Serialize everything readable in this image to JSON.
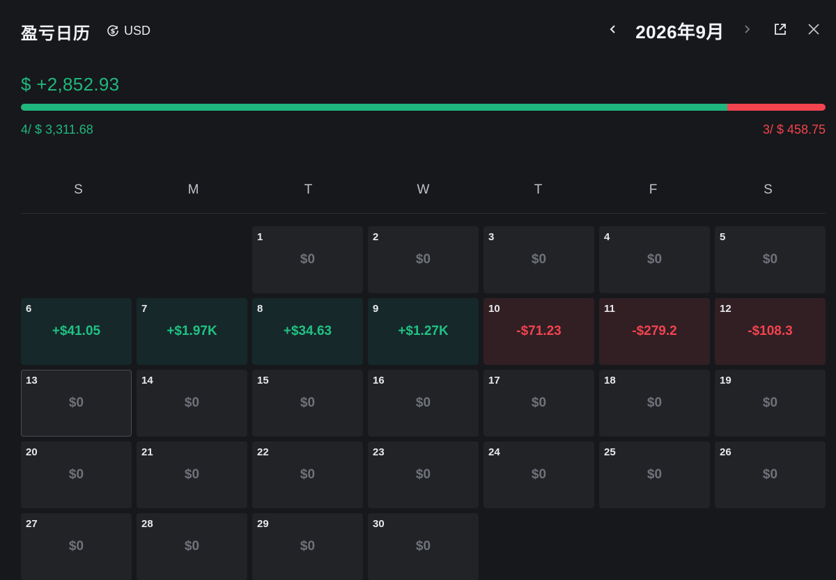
{
  "header": {
    "title": "盈亏日历",
    "currency": "USD",
    "month": "2026年9月",
    "icons": {
      "currency": "dollar-cycle-icon",
      "prev": "chevron-left-icon",
      "next": "chevron-right-icon",
      "external": "external-link-icon",
      "close": "close-icon"
    }
  },
  "summary": {
    "total": "$ +2,852.93",
    "win_label": "4/ $ 3,311.68",
    "loss_label": "3/ $ 458.75",
    "win_fraction": 0.878,
    "colors": {
      "win": "#1fb77e",
      "loss": "#f2434f"
    }
  },
  "weekdays": [
    "S",
    "M",
    "T",
    "W",
    "T",
    "F",
    "S"
  ],
  "days": [
    {
      "day": "",
      "pnl": "",
      "status": "empty"
    },
    {
      "day": "",
      "pnl": "",
      "status": "empty"
    },
    {
      "day": "1",
      "pnl": "$0",
      "status": "zero"
    },
    {
      "day": "2",
      "pnl": "$0",
      "status": "zero"
    },
    {
      "day": "3",
      "pnl": "$0",
      "status": "zero"
    },
    {
      "day": "4",
      "pnl": "$0",
      "status": "zero"
    },
    {
      "day": "5",
      "pnl": "$0",
      "status": "zero"
    },
    {
      "day": "6",
      "pnl": "+$41.05",
      "status": "pos"
    },
    {
      "day": "7",
      "pnl": "+$1.97K",
      "status": "pos"
    },
    {
      "day": "8",
      "pnl": "+$34.63",
      "status": "pos"
    },
    {
      "day": "9",
      "pnl": "+$1.27K",
      "status": "pos"
    },
    {
      "day": "10",
      "pnl": "-$71.23",
      "status": "neg"
    },
    {
      "day": "11",
      "pnl": "-$279.2",
      "status": "neg"
    },
    {
      "day": "12",
      "pnl": "-$108.3",
      "status": "neg"
    },
    {
      "day": "13",
      "pnl": "$0",
      "status": "zero",
      "selected": true
    },
    {
      "day": "14",
      "pnl": "$0",
      "status": "zero"
    },
    {
      "day": "15",
      "pnl": "$0",
      "status": "zero"
    },
    {
      "day": "16",
      "pnl": "$0",
      "status": "zero"
    },
    {
      "day": "17",
      "pnl": "$0",
      "status": "zero"
    },
    {
      "day": "18",
      "pnl": "$0",
      "status": "zero"
    },
    {
      "day": "19",
      "pnl": "$0",
      "status": "zero"
    },
    {
      "day": "20",
      "pnl": "$0",
      "status": "zero"
    },
    {
      "day": "21",
      "pnl": "$0",
      "status": "zero"
    },
    {
      "day": "22",
      "pnl": "$0",
      "status": "zero"
    },
    {
      "day": "23",
      "pnl": "$0",
      "status": "zero"
    },
    {
      "day": "24",
      "pnl": "$0",
      "status": "zero"
    },
    {
      "day": "25",
      "pnl": "$0",
      "status": "zero"
    },
    {
      "day": "26",
      "pnl": "$0",
      "status": "zero"
    },
    {
      "day": "27",
      "pnl": "$0",
      "status": "zero"
    },
    {
      "day": "28",
      "pnl": "$0",
      "status": "zero"
    },
    {
      "day": "29",
      "pnl": "$0",
      "status": "zero"
    },
    {
      "day": "30",
      "pnl": "$0",
      "status": "zero"
    }
  ]
}
